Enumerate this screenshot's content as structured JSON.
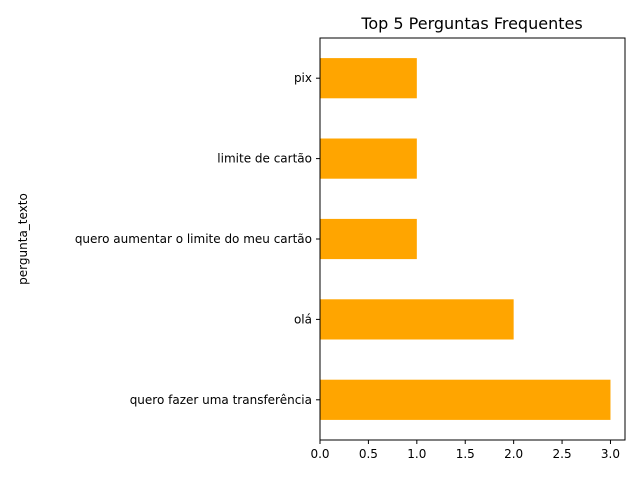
{
  "chart_data": {
    "type": "bar",
    "orientation": "horizontal",
    "title": "Top 5 Perguntas Frequentes",
    "xlabel": "",
    "ylabel": "pergunta_texto",
    "categories": [
      "quero fazer uma transferência",
      "olá",
      "quero aumentar o limite do meu cartão",
      "limite de cartão",
      "pix"
    ],
    "values": [
      3,
      2,
      1,
      1,
      1
    ],
    "xlim": [
      0,
      3.15
    ],
    "xticks": [
      0.0,
      0.5,
      1.0,
      1.5,
      2.0,
      2.5,
      3.0
    ],
    "xtick_labels": [
      "0.0",
      "0.5",
      "1.0",
      "1.5",
      "2.0",
      "2.5",
      "3.0"
    ],
    "bar_color": "#ffa500",
    "grid": false,
    "legend": "none"
  }
}
